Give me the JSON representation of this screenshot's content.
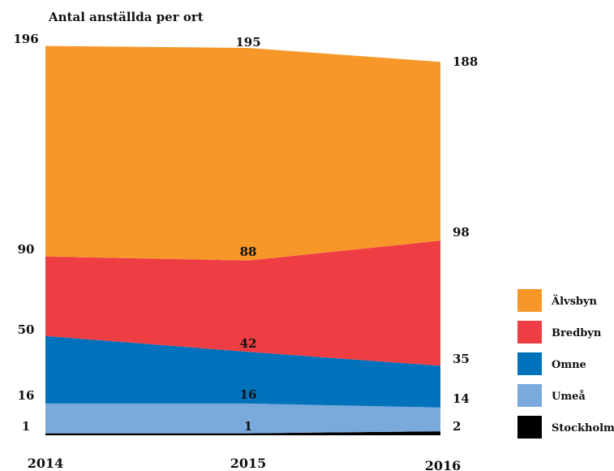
{
  "chart_data": {
    "type": "area",
    "stacked": true,
    "title": "Antal anställda per ort",
    "x": [
      "2014",
      "2015",
      "2016"
    ],
    "series": [
      {
        "name": "Stockholm",
        "values": [
          1,
          1,
          2
        ],
        "color": "#000000"
      },
      {
        "name": "Umeå",
        "values": [
          15,
          15,
          12
        ],
        "color": "#7aaadc"
      },
      {
        "name": "Omne",
        "values": [
          34,
          26,
          21
        ],
        "color": "#0072bb"
      },
      {
        "name": "Bredbyn",
        "values": [
          40,
          46,
          63
        ],
        "color": "#ee3e44"
      },
      {
        "name": "Älvsbyn",
        "values": [
          106,
          107,
          90
        ],
        "color": "#f7972a"
      }
    ],
    "labels": {
      "2014": [
        "1",
        "16",
        "50",
        "90",
        "196"
      ],
      "2015": [
        "1",
        "16",
        "42",
        "88",
        "195"
      ],
      "2016": [
        "2",
        "14",
        "35",
        "98",
        "188"
      ]
    },
    "ylim": [
      0,
      200
    ],
    "legend_position": "right",
    "grid": false
  }
}
